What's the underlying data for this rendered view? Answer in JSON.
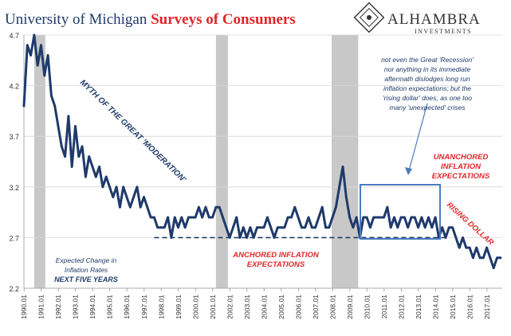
{
  "title_part1": "University of Michigan ",
  "title_part2": "Surveys of Consumers",
  "logo": {
    "name": "ALHAMBRA",
    "sub": "INVESTMENTS"
  },
  "colors": {
    "title_blue": "#1f3a6b",
    "title_red": "#e0262a",
    "line": "#1f3a6b",
    "recession_band": "#c8c8c8",
    "annotation_red": "#e0262a",
    "box_blue": "#4a7abf",
    "text_dark": "#1f3a6b"
  },
  "annotations": {
    "myth": "MYTH OF THE GREAT 'MODERATION'",
    "anchored_line1": "ANCHORED INFLATION",
    "anchored_line2": "EXPECTATIONS",
    "unanchored_line1": "UNANCHORED",
    "unanchored_line2": "INFLATION",
    "unanchored_line3": "EXPECTATIONS",
    "rising_dollar": "RISING DOLLAR",
    "note_lines": [
      "not even the Great 'Recession'",
      "nor anything in its immediate",
      "aftermath dislodges long run",
      "inflation expectations; but the",
      "'rising dollar' does, as one too",
      "many 'unexpected' crises"
    ],
    "legend_line1": "Expected Change in",
    "legend_line2": "Inflation Rates",
    "legend_line3": "NEXT FIVE YEARS"
  },
  "chart_data": {
    "type": "line",
    "title": "University of Michigan Surveys of Consumers",
    "series_name": "Expected Change in Inflation Rates NEXT FIVE YEARS",
    "ylim": [
      2.2,
      4.7
    ],
    "yticks": [
      2.2,
      2.7,
      3.2,
      3.7,
      4.2,
      4.7
    ],
    "xlim": [
      1990.0,
      2017.9
    ],
    "xticks": [
      "1990.01",
      "1991.01",
      "1992.01",
      "1993.01",
      "1994.01",
      "1995.01",
      "1996.01",
      "1997.01",
      "1998.01",
      "1999.01",
      "2000.01",
      "2001.01",
      "2002.01",
      "2003.01",
      "2004.01",
      "2005.01",
      "2006.01",
      "2007.01",
      "2008.01",
      "2009.01",
      "2010.01",
      "2011.01",
      "2012.01",
      "2013.01",
      "2014.01",
      "2015.01",
      "2016.01",
      "2017.01"
    ],
    "recessions": [
      [
        1990.6,
        1991.25
      ],
      [
        2001.2,
        2001.9
      ],
      [
        2007.95,
        2009.5
      ]
    ],
    "anchored_level": 2.7,
    "anchored_span": [
      1997.6,
      2014.8
    ],
    "x": [
      1990.0,
      1990.2,
      1990.4,
      1990.6,
      1990.8,
      1991.0,
      1991.2,
      1991.4,
      1991.6,
      1991.8,
      1992.0,
      1992.2,
      1992.4,
      1992.6,
      1992.8,
      1993.0,
      1993.2,
      1993.4,
      1993.6,
      1993.8,
      1994.0,
      1994.2,
      1994.4,
      1994.6,
      1994.8,
      1995.0,
      1995.2,
      1995.4,
      1995.6,
      1995.8,
      1996.0,
      1996.2,
      1996.4,
      1996.6,
      1996.8,
      1997.0,
      1997.2,
      1997.4,
      1997.6,
      1997.8,
      1998.0,
      1998.2,
      1998.4,
      1998.6,
      1998.8,
      1999.0,
      1999.2,
      1999.4,
      1999.6,
      1999.8,
      2000.0,
      2000.2,
      2000.4,
      2000.6,
      2000.8,
      2001.0,
      2001.2,
      2001.4,
      2001.6,
      2001.8,
      2002.0,
      2002.2,
      2002.4,
      2002.6,
      2002.8,
      2003.0,
      2003.2,
      2003.4,
      2003.6,
      2003.8,
      2004.0,
      2004.2,
      2004.4,
      2004.6,
      2004.8,
      2005.0,
      2005.2,
      2005.4,
      2005.6,
      2005.8,
      2006.0,
      2006.2,
      2006.4,
      2006.6,
      2006.8,
      2007.0,
      2007.2,
      2007.4,
      2007.6,
      2007.8,
      2008.0,
      2008.2,
      2008.4,
      2008.6,
      2008.8,
      2009.0,
      2009.2,
      2009.4,
      2009.6,
      2009.8,
      2010.0,
      2010.2,
      2010.4,
      2010.6,
      2010.8,
      2011.0,
      2011.2,
      2011.4,
      2011.6,
      2011.8,
      2012.0,
      2012.2,
      2012.4,
      2012.6,
      2012.8,
      2013.0,
      2013.2,
      2013.4,
      2013.6,
      2013.8,
      2014.0,
      2014.2,
      2014.4,
      2014.6,
      2014.8,
      2015.0,
      2015.2,
      2015.4,
      2015.6,
      2015.8,
      2016.0,
      2016.2,
      2016.4,
      2016.6,
      2016.8,
      2017.0,
      2017.2,
      2017.4,
      2017.6,
      2017.8
    ],
    "values": [
      4.0,
      4.6,
      4.5,
      4.7,
      4.4,
      4.6,
      4.3,
      4.5,
      4.1,
      4.0,
      3.8,
      3.6,
      3.5,
      3.9,
      3.4,
      3.8,
      3.5,
      3.6,
      3.3,
      3.5,
      3.4,
      3.3,
      3.4,
      3.2,
      3.3,
      3.2,
      3.1,
      3.2,
      3.0,
      3.2,
      3.1,
      3.0,
      3.1,
      3.2,
      3.0,
      3.1,
      3.0,
      2.9,
      2.9,
      2.8,
      2.8,
      2.8,
      2.9,
      2.7,
      2.9,
      2.8,
      2.9,
      2.8,
      2.9,
      2.9,
      2.9,
      3.0,
      2.9,
      3.0,
      2.9,
      2.9,
      3.0,
      3.0,
      2.9,
      2.8,
      2.7,
      2.8,
      2.9,
      2.7,
      2.8,
      2.7,
      2.8,
      2.7,
      2.8,
      2.8,
      2.8,
      2.9,
      2.8,
      2.7,
      2.8,
      2.8,
      2.8,
      2.9,
      2.9,
      3.0,
      2.9,
      2.8,
      2.8,
      2.9,
      2.8,
      2.8,
      2.9,
      3.0,
      2.8,
      2.8,
      2.9,
      3.0,
      3.2,
      3.4,
      3.1,
      2.9,
      2.8,
      2.9,
      2.7,
      2.9,
      2.9,
      2.8,
      2.9,
      2.9,
      2.9,
      2.9,
      3.0,
      2.8,
      2.9,
      2.8,
      2.9,
      2.9,
      2.8,
      2.9,
      2.9,
      2.8,
      2.9,
      2.8,
      2.9,
      2.8,
      2.9,
      2.7,
      2.8,
      2.7,
      2.8,
      2.8,
      2.7,
      2.6,
      2.7,
      2.6,
      2.6,
      2.5,
      2.6,
      2.5,
      2.5,
      2.6,
      2.5,
      2.4,
      2.5,
      2.5
    ]
  }
}
